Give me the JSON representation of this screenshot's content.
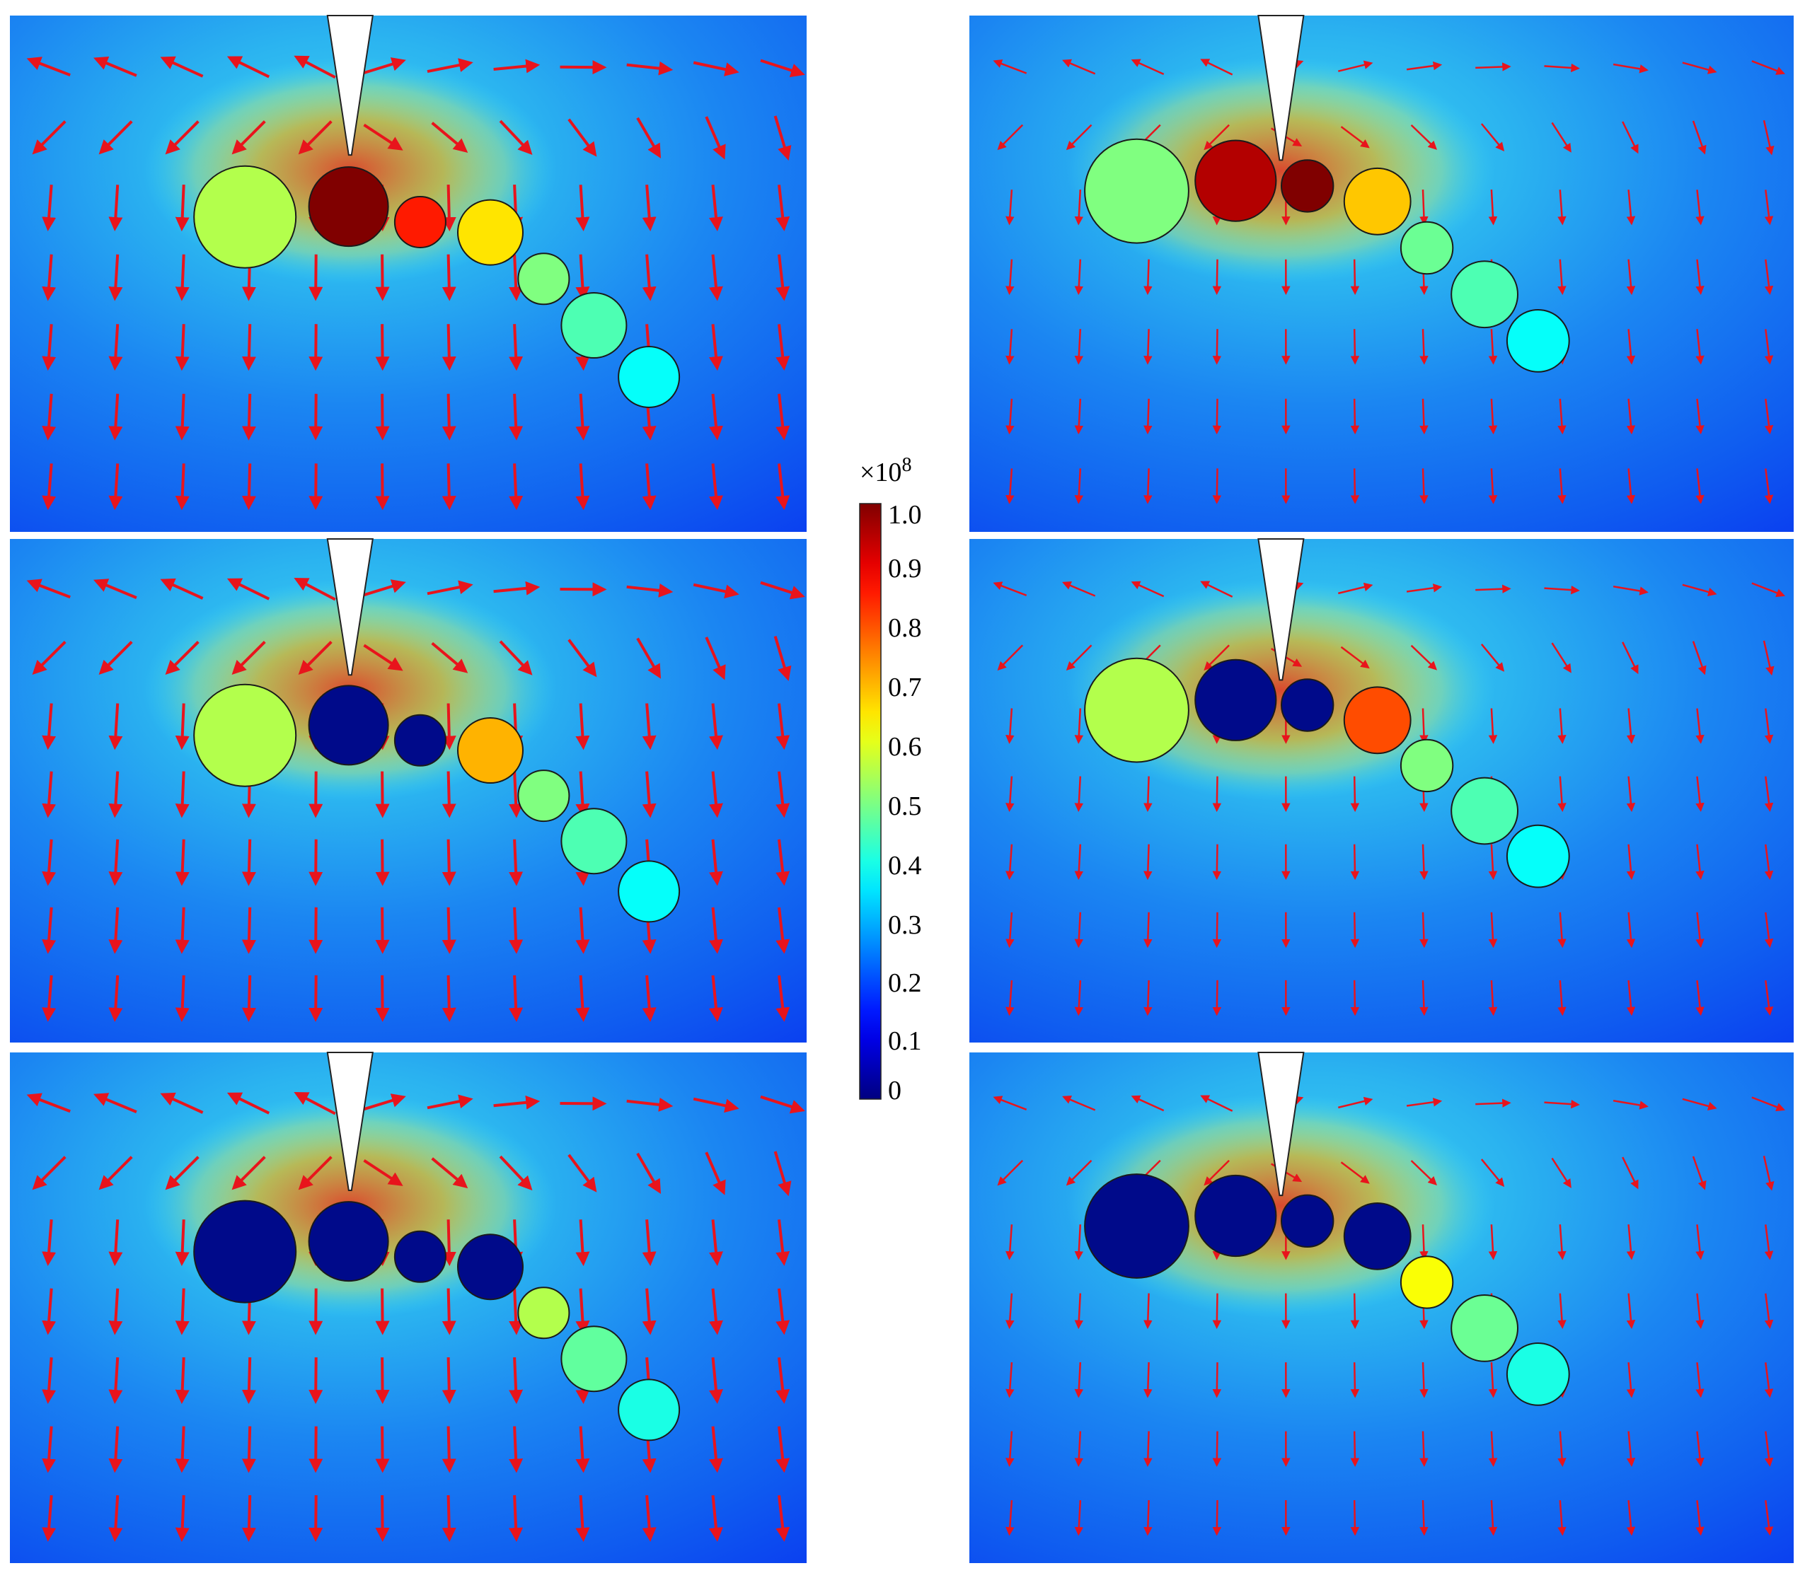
{
  "colorbar": {
    "multiplier_prefix": "×10",
    "multiplier_exponent": "8",
    "tick_labels": [
      "1.0",
      "0.9",
      "0.8",
      "0.7",
      "0.6",
      "0.5",
      "0.4",
      "0.3",
      "0.2",
      "0.1",
      "0"
    ],
    "range": [
      0,
      1.0
    ],
    "colormap": "jet"
  },
  "colors": {
    "arrow": "#e8141c",
    "particle_outline": "#1a1a1a",
    "electrode_fill": "#ffffff",
    "saturated_particle": "#000a8a"
  },
  "panels": [
    {
      "id": "left-1",
      "column": "left",
      "row": 1,
      "particle_levels": [
        0.55,
        1.0,
        0.85,
        0.65,
        0.5,
        0.45,
        0.38
      ]
    },
    {
      "id": "left-2",
      "column": "left",
      "row": 2,
      "particle_levels": [
        0.55,
        0.0,
        0.0,
        0.7,
        0.5,
        0.45,
        0.38
      ]
    },
    {
      "id": "left-3",
      "column": "left",
      "row": 3,
      "particle_levels": [
        0.0,
        0.0,
        0.0,
        0.0,
        0.55,
        0.47,
        0.4
      ]
    },
    {
      "id": "right-1",
      "column": "right",
      "row": 1,
      "particle_levels": [
        0.5,
        0.95,
        1.0,
        0.68,
        0.48,
        0.45,
        0.38
      ]
    },
    {
      "id": "right-2",
      "column": "right",
      "row": 2,
      "particle_levels": [
        0.55,
        0.0,
        0.0,
        0.8,
        0.5,
        0.45,
        0.38
      ]
    },
    {
      "id": "right-3",
      "column": "right",
      "row": 3,
      "particle_levels": [
        0.0,
        0.0,
        0.0,
        0.0,
        0.62,
        0.48,
        0.4
      ]
    }
  ]
}
